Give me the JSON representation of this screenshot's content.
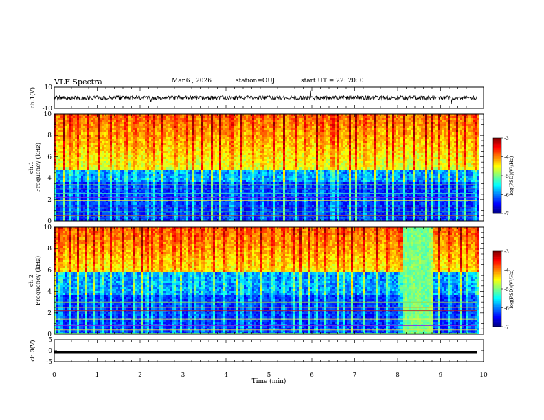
{
  "header": {
    "title": "VLF Spectra",
    "date": "Mar.6 , 2026",
    "station": "station=OUJ",
    "start": "start UT = 22: 20: 0"
  },
  "chart_data": [
    {
      "type": "line",
      "panel": "ch1-waveform",
      "ylabel": "ch.1(V)",
      "ylim": [
        -10,
        10
      ],
      "yticks": [
        "10",
        "-10"
      ],
      "xlim": [
        0,
        10
      ],
      "note": "noisy waveform centred near 0 V with occasional spikes"
    },
    {
      "type": "heatmap",
      "panel": "ch1-spectrogram",
      "ylabel": "ch.1\nFrequency (kHz)",
      "ylim": [
        0,
        10
      ],
      "yticks": [
        "0",
        "2",
        "4",
        "6",
        "8",
        "10"
      ],
      "xlim": [
        0,
        10
      ],
      "data_end_min": 9.85,
      "colorbar": {
        "label": "log(PSD)(V²/Hz)",
        "range": [
          -7,
          -3
        ],
        "ticks": [
          "-3",
          "-4",
          "-5",
          "-6",
          "-7"
        ]
      }
    },
    {
      "type": "heatmap",
      "panel": "ch2-spectrogram",
      "ylabel": "ch.2\nFrequency (kHz)",
      "ylim": [
        0,
        10
      ],
      "yticks": [
        "0",
        "2",
        "4",
        "6",
        "8",
        "10"
      ],
      "xlim": [
        0,
        10
      ],
      "data_end_min": 9.85,
      "colorbar": {
        "label": "log(PSD)(V²/Hz)",
        "range": [
          -7,
          -3
        ],
        "ticks": [
          "-3",
          "-4",
          "-5",
          "-6",
          "-7"
        ]
      }
    },
    {
      "type": "line",
      "panel": "ch3-waveform",
      "ylabel": "ch.3(V)",
      "ylim": [
        -5,
        5
      ],
      "yticks": [
        "5",
        "0",
        "-5"
      ],
      "xlim": [
        0,
        10
      ],
      "x": [
        0,
        9.85
      ],
      "values": [
        -0.8,
        -0.8
      ]
    }
  ],
  "xaxis": {
    "label": "Time (min)",
    "ticks": [
      "0",
      "1",
      "2",
      "3",
      "4",
      "5",
      "6",
      "7",
      "8",
      "9",
      "10"
    ]
  },
  "colors": {
    "axis": "#000000",
    "background": "#ffffff"
  }
}
